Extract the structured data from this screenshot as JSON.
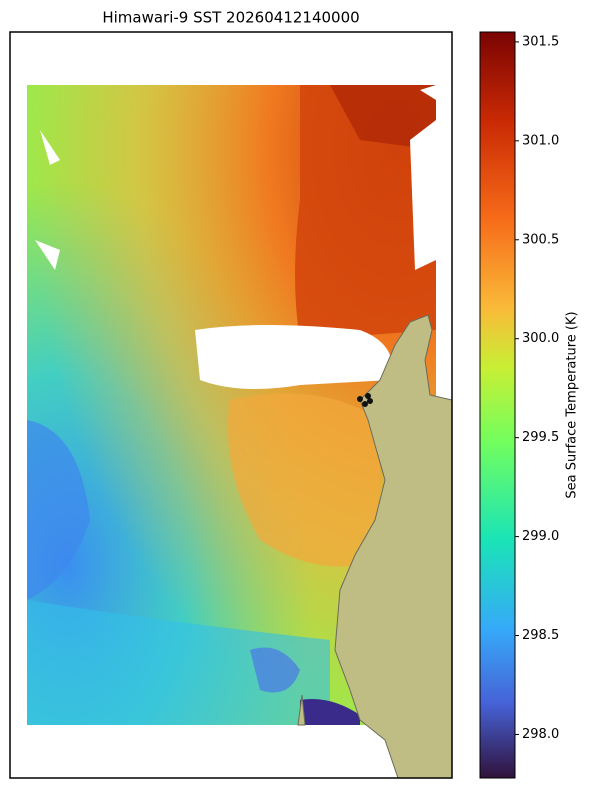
{
  "title": "Himawari-9 SST 20260412140000",
  "colorbar": {
    "label": "Sea Surface Temperature (K)",
    "lim": [
      297.78,
      301.55
    ],
    "ticks": [
      {
        "value": 298.0,
        "label": "298.0"
      },
      {
        "value": 298.5,
        "label": "298.5"
      },
      {
        "value": 299.0,
        "label": "299.0"
      },
      {
        "value": 299.5,
        "label": "299.5"
      },
      {
        "value": 300.0,
        "label": "300.0"
      },
      {
        "value": 300.5,
        "label": "300.5"
      },
      {
        "value": 301.0,
        "label": "301.0"
      },
      {
        "value": 301.5,
        "label": "301.5"
      }
    ]
  }
}
